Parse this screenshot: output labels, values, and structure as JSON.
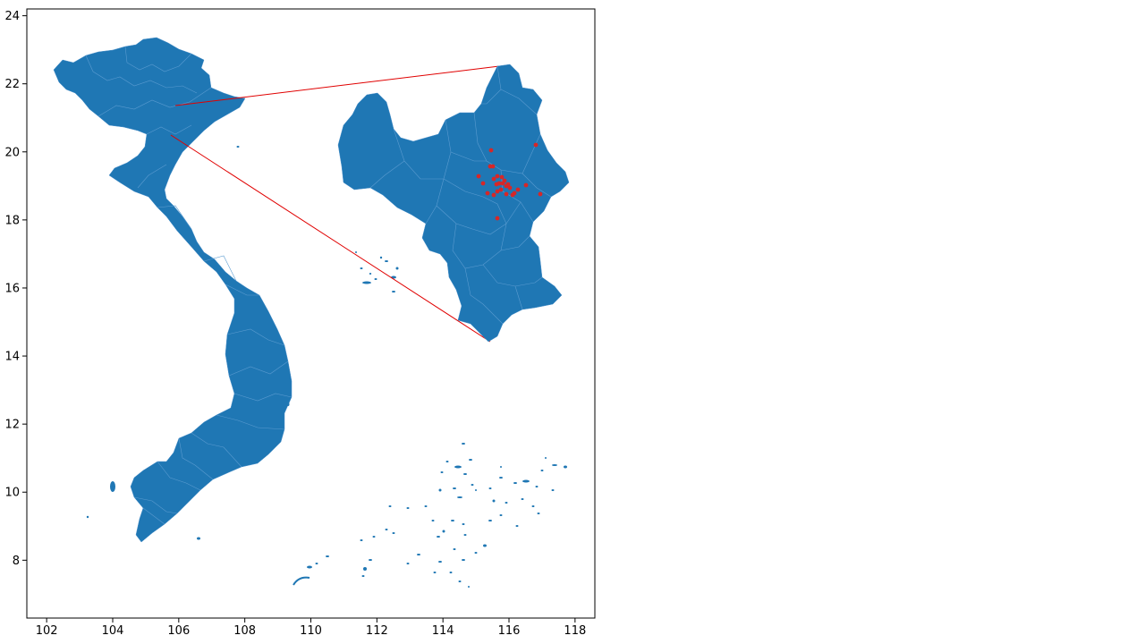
{
  "chart_data": {
    "type": "map",
    "title": "",
    "xlabel": "",
    "ylabel": "",
    "xlim": [
      101.4,
      118.6
    ],
    "ylim": [
      6.3,
      24.2
    ],
    "xticks": [
      "102",
      "104",
      "106",
      "108",
      "110",
      "112",
      "114",
      "116",
      "118"
    ],
    "yticks": [
      "8",
      "10",
      "12",
      "14",
      "16",
      "18",
      "20",
      "22",
      "24"
    ],
    "grid": false,
    "main_map": "Vietnam provinces",
    "inset_map": "Hanoi districts (zoomed inset)",
    "inset_source_point": [
      106.0,
      21.0
    ],
    "colors": {
      "land": "#1f77b4",
      "markers": "#d62728",
      "inset_lines": "#e00000"
    },
    "points_in_inset_count": 27
  }
}
